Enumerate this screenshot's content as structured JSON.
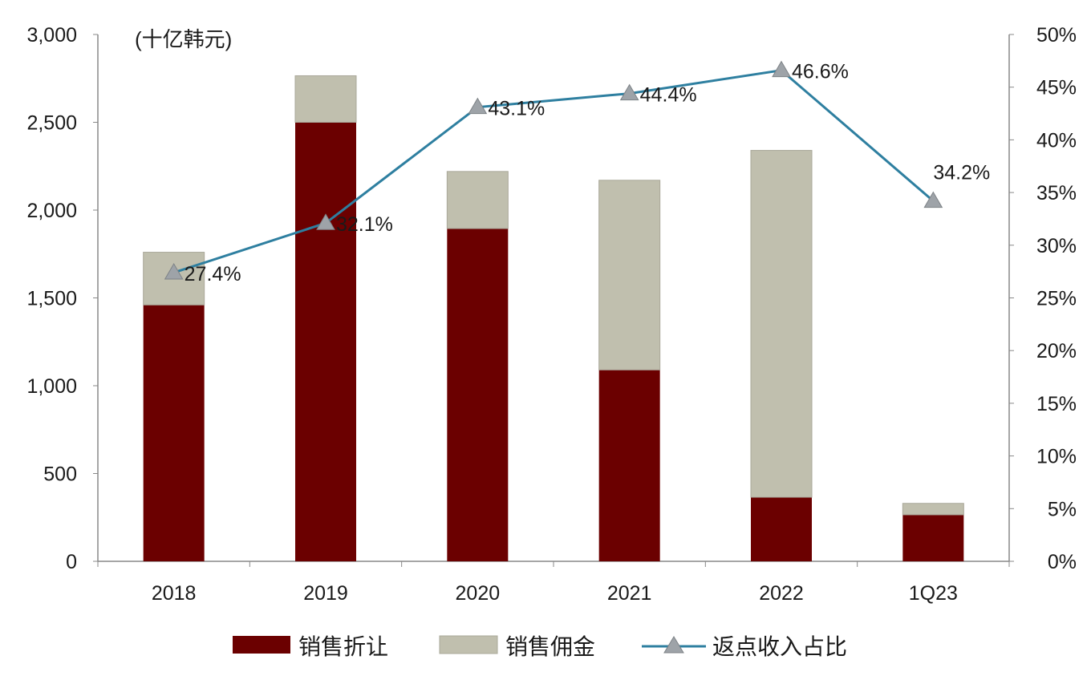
{
  "chart_data": {
    "type": "bar",
    "stacked": true,
    "unit_label": "(十亿韩元)",
    "categories": [
      "2018",
      "2019",
      "2020",
      "2021",
      "2022",
      "1Q23"
    ],
    "series": [
      {
        "name": "销售折让",
        "kind": "bar",
        "axis": "left",
        "color": "#6b0000",
        "values": [
          1460,
          2500,
          1895,
          1090,
          365,
          265
        ]
      },
      {
        "name": "销售佣金",
        "kind": "bar",
        "axis": "left",
        "color": "#c0bfae",
        "values": [
          300,
          265,
          325,
          1080,
          1975,
          65
        ]
      },
      {
        "name": "返点收入占比",
        "kind": "line",
        "axis": "right",
        "color": "#2e7fa0",
        "marker": "triangle",
        "values": [
          27.4,
          32.1,
          43.1,
          44.4,
          46.6,
          34.2
        ],
        "labels": [
          "27.4%",
          "32.1%",
          "43.1%",
          "44.4%",
          "46.6%",
          "34.2%"
        ]
      }
    ],
    "y_left": {
      "min": 0,
      "max": 3000,
      "ticks": [
        "0",
        "500",
        "1,000",
        "1,500",
        "2,000",
        "2,500",
        "3,000"
      ]
    },
    "y_right": {
      "min": 0,
      "max": 50,
      "ticks": [
        "0%",
        "5%",
        "10%",
        "15%",
        "20%",
        "25%",
        "30%",
        "35%",
        "40%",
        "45%",
        "50%"
      ]
    },
    "grid": false,
    "legend": "bottom"
  }
}
